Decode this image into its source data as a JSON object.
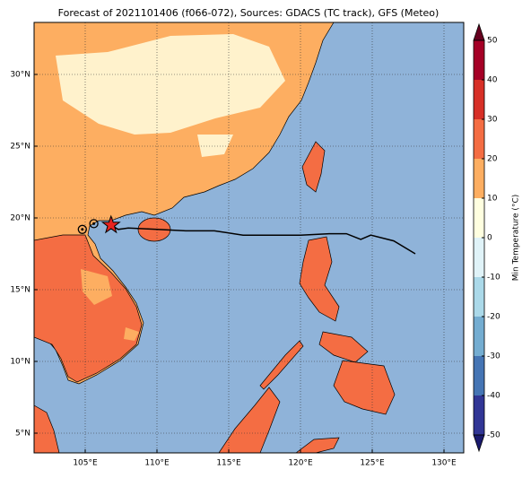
{
  "chart_data": {
    "type": "map",
    "title": "Forecast of 2021101406 (f066-072), Sources: GDACS (TC track), GFS (Meteo)",
    "xlim": [
      101.4375,
      131.375
    ],
    "ylim": [
      3.625,
      33.625
    ],
    "xticks": [
      {
        "value": 105,
        "label": "105°E"
      },
      {
        "value": 110,
        "label": "110°E"
      },
      {
        "value": 115,
        "label": "115°E"
      },
      {
        "value": 120,
        "label": "120°E"
      },
      {
        "value": 125,
        "label": "125°E"
      },
      {
        "value": 130,
        "label": "130°E"
      }
    ],
    "yticks": [
      {
        "value": 5,
        "label": "5°N"
      },
      {
        "value": 10,
        "label": "10°N"
      },
      {
        "value": 15,
        "label": "15°N"
      },
      {
        "value": 20,
        "label": "20°N"
      },
      {
        "value": 25,
        "label": "25°N"
      },
      {
        "value": 30,
        "label": "30°N"
      }
    ],
    "grid": true,
    "track": {
      "color": "#000000",
      "lon": [
        106.8,
        107.3,
        108.0,
        110.0,
        112.0,
        114.0,
        116.0,
        118.0,
        120.0,
        122.0,
        123.2,
        124.2,
        124.9,
        126.5,
        128.0
      ],
      "lat": [
        19.5,
        19.2,
        19.3,
        19.2,
        19.1,
        19.1,
        18.8,
        18.8,
        18.8,
        18.9,
        18.9,
        18.5,
        18.8,
        18.4,
        17.5
      ]
    },
    "past_positions": {
      "lon": [
        104.8,
        105.6
      ],
      "lat": [
        19.2,
        19.6
      ]
    },
    "current_position": {
      "lon": 106.8,
      "lat": 19.5,
      "color": "#e8231f"
    },
    "colorbar": {
      "label": "Min Temperature (°C)",
      "ticks": [
        -50,
        -40,
        -30,
        -20,
        -10,
        0,
        10,
        20,
        30,
        40,
        50
      ],
      "colors": [
        "#313695",
        "#4575b4",
        "#74add1",
        "#abd9e9",
        "#e0f3f8",
        "#ffffe0",
        "#fdae61",
        "#f46d43",
        "#d73027",
        "#a50026"
      ],
      "under_color": "#1a1a6e",
      "over_color": "#67001f"
    }
  }
}
